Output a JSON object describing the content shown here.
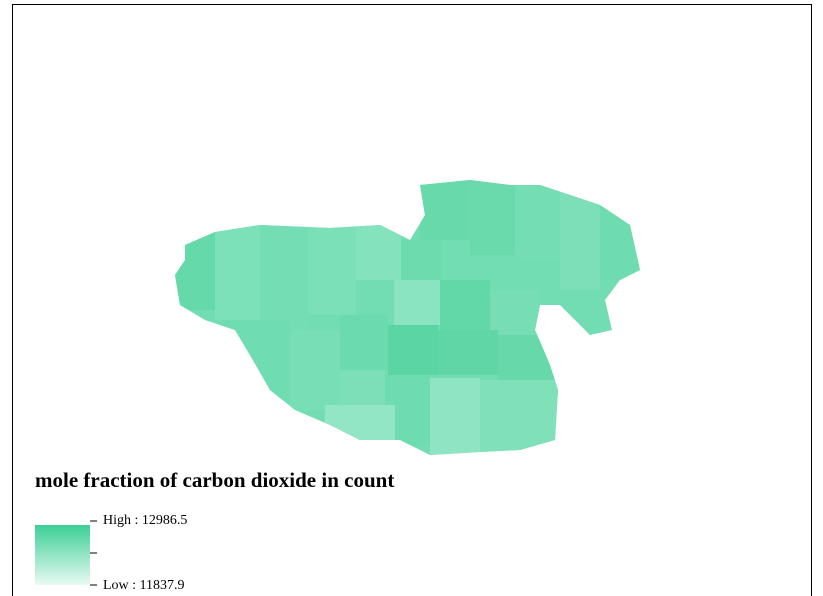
{
  "legend": {
    "title": "mole fraction of carbon dioxide in count",
    "high": "High : 12986.5",
    "low": "Low : 11837.9"
  }
}
